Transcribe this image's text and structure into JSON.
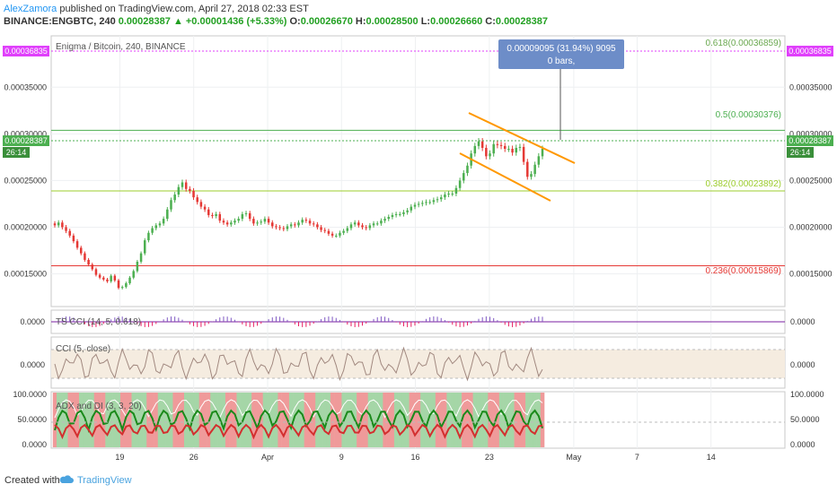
{
  "header": {
    "author": "AlexZamora",
    "published": "published on TradingView.com, April 27, 2018 02:33 EST",
    "symbol": "BINANCE:ENGBTC, 240",
    "last": "0.00028387",
    "change": "▲ +0.00001436 (+5.33%)",
    "o_label": "O:",
    "o": "0.00026670",
    "h_label": "H:",
    "h": "0.00028500",
    "l_label": "L:",
    "l": "0.00026660",
    "c_label": "C:",
    "c": "0.00028387"
  },
  "main": {
    "title": "Enigma / Bitcoin, 240, BINANCE",
    "price_tag": "0.00028387",
    "countdown": "26:14",
    "top_tag": "0.00036835",
    "measure": {
      "line1": "0.00009095 (31.94%) 9095",
      "line2": "0 bars,"
    }
  },
  "fib_labels": {
    "f618": "0.618(0.00036859)",
    "f5": "0.5(0.00030376)",
    "f382": "0.382(0.00023892)",
    "f236": "0.236(0.00015869)"
  },
  "indicators": {
    "tsi": {
      "title": "TS CCI (14, 5, 0.618)",
      "value": "0.0000",
      "left_value": "0.0000"
    },
    "cci": {
      "title": "CCI (5, close)",
      "value": "0.0000",
      "left_value": "0.0000"
    },
    "adx": {
      "title": "ADX and DI (3, 3, 20)",
      "ticks": [
        "100.0000",
        "50.0000",
        "0.0000"
      ]
    }
  },
  "footer": {
    "created": "Created with",
    "brand": "TradingView"
  },
  "colors": {
    "up": "#4caf50",
    "down": "#e53935",
    "accent": "#e040fb",
    "fib618": "#6aa84f",
    "fib5": "#4caf50",
    "fib382": "#9ccc2c",
    "fib236": "#e53935",
    "channel": "#ff9800"
  },
  "chart_data": {
    "type": "candlestick",
    "title": "Enigma / Bitcoin, 240, BINANCE",
    "ylim": [
      0.000115,
      0.000405
    ],
    "y_ticks": [
      "0.00035000",
      "0.00030000",
      "0.00025000",
      "0.00020000",
      "0.00015000"
    ],
    "y_tick_values": [
      0.00035,
      0.0003,
      0.00025,
      0.0002,
      0.00015
    ],
    "x_ticks": [
      "19",
      "26",
      "Apr",
      "9",
      "16",
      "23",
      "May",
      "7",
      "14"
    ],
    "x_tick_days": [
      19,
      26,
      33,
      40,
      47,
      54,
      62,
      68,
      75
    ],
    "x_day_range": [
      12.5,
      82
    ],
    "close": [
      0.000202,
      0.000205,
      0.0002,
      0.000196,
      0.000191,
      0.000185,
      0.000178,
      0.000172,
      0.000165,
      0.00016,
      0.000155,
      0.000149,
      0.000146,
      0.000144,
      0.000142,
      0.000148,
      0.000143,
      0.000135,
      0.000136,
      0.00014,
      0.000146,
      0.000153,
      0.000163,
      0.000172,
      0.000186,
      0.000194,
      0.000199,
      0.000202,
      0.000204,
      0.000209,
      0.000219,
      0.000229,
      0.000235,
      0.000243,
      0.000248,
      0.000241,
      0.000239,
      0.000232,
      0.000227,
      0.000222,
      0.000219,
      0.000213,
      0.000212,
      0.000214,
      0.000207,
      0.000205,
      0.000203,
      0.000205,
      0.000207,
      0.000209,
      0.000214,
      0.000215,
      0.000209,
      0.000204,
      0.000205,
      0.000206,
      0.000209,
      0.000205,
      0.000201,
      0.0002,
      0.000199,
      0.000198,
      0.000201,
      0.000203,
      0.000202,
      0.000205,
      0.000208,
      0.000207,
      0.000204,
      0.000203,
      0.0002,
      0.000197,
      0.000196,
      0.000193,
      0.000191,
      0.000191,
      0.000194,
      0.000196,
      0.000199,
      0.000203,
      0.000205,
      0.000202,
      0.0002,
      0.000199,
      0.000202,
      0.000204,
      0.000204,
      0.000207,
      0.000209,
      0.000211,
      0.000213,
      0.000214,
      0.000214,
      0.000216,
      0.000218,
      0.000222,
      0.000224,
      0.000225,
      0.000226,
      0.000227,
      0.000227,
      0.000229,
      0.00023,
      0.000232,
      0.000235,
      0.000236,
      0.000236,
      0.000242,
      0.00025,
      0.000258,
      0.000266,
      0.000279,
      0.000287,
      0.000292,
      0.000285,
      0.000276,
      0.000279,
      0.000289,
      0.000288,
      0.000287,
      0.000284,
      0.000284,
      0.00028,
      0.000285,
      0.000286,
      0.00027,
      0.000254,
      0.000257,
      0.000267,
      0.000276,
      0.000284
    ],
    "fib_levels": [
      {
        "ratio": 0.618,
        "value": 0.00036859
      },
      {
        "ratio": 0.5,
        "value": 0.00030376
      },
      {
        "ratio": 0.382,
        "value": 0.00023892
      },
      {
        "ratio": 0.236,
        "value": 0.00015869
      }
    ]
  }
}
